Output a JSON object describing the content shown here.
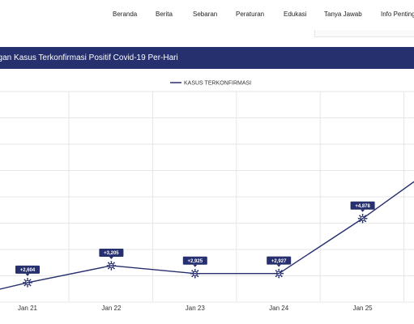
{
  "nav": {
    "items": [
      "Beranda",
      "Berita",
      "Sebaran",
      "Peraturan",
      "Edukasi",
      "Tanya Jawab",
      "Info Penting"
    ]
  },
  "banner": {
    "title": "ngan Kasus Terkonfirmasi Positif Covid-19 Per-Hari"
  },
  "colors": {
    "banner": "#27306e",
    "series": "#27306e",
    "grid": "#e6e6e6"
  },
  "chart_data": {
    "type": "line",
    "title": "ngan Kasus Terkonfirmasi Positif Covid-19 Per-Hari",
    "legend_position": "top-center",
    "grid": true,
    "categories": [
      "Jan 21",
      "Jan 22",
      "Jan 23",
      "Jan 24",
      "Jan 25"
    ],
    "series": [
      {
        "name": "KASUS TERKONFIRMASI",
        "values": [
          2604,
          3205,
          2925,
          2927,
          4878
        ],
        "labels": [
          "+2,604",
          "+3,205",
          "+2,925",
          "+2,927",
          "+4,878"
        ],
        "marker": "virus-icon"
      }
    ]
  }
}
